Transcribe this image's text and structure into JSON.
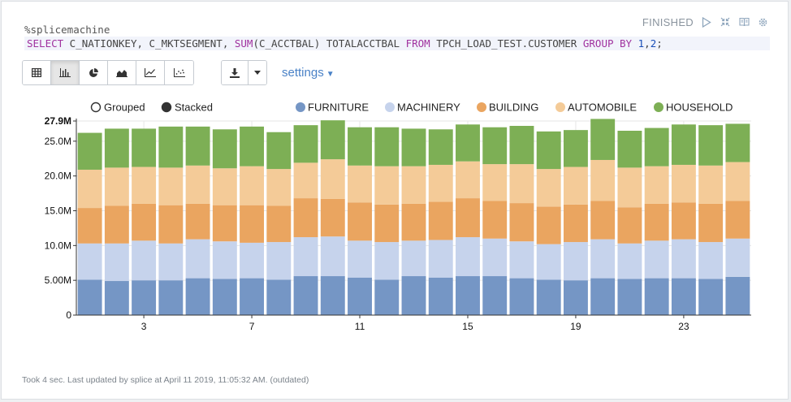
{
  "paragraph": {
    "status": "FINISHED",
    "interpreter": "%splicemachine",
    "query": {
      "select": "SELECT",
      "cols": " C_NATIONKEY, C_MKTSEGMENT, ",
      "sum_fn": "SUM",
      "sum_arg": "(C_ACCTBAL) TOTALACCTBAL ",
      "from": "FROM",
      "table": " TPCH_LOAD_TEST.CUSTOMER ",
      "group_by": "GROUP BY",
      "gb_sp": " ",
      "n1": "1",
      "comma": ",",
      "n2": "2",
      "semi": ";"
    }
  },
  "toolbar": {
    "view_buttons": [
      {
        "name": "table",
        "icon": "table-icon"
      },
      {
        "name": "bar-chart",
        "icon": "bar-chart-icon",
        "active": true
      },
      {
        "name": "pie-chart",
        "icon": "pie-chart-icon"
      },
      {
        "name": "area-chart",
        "icon": "area-chart-icon"
      },
      {
        "name": "line-chart",
        "icon": "line-chart-icon"
      },
      {
        "name": "scatter-chart",
        "icon": "scatter-chart-icon"
      }
    ],
    "settings_label": "settings"
  },
  "chart_data": {
    "type": "bar",
    "stacked": true,
    "mode_options": [
      "Grouped",
      "Stacked"
    ],
    "selected_mode": "Stacked",
    "legend_position": "top",
    "x": [
      1,
      2,
      3,
      4,
      5,
      6,
      7,
      8,
      9,
      10,
      11,
      12,
      13,
      14,
      15,
      16,
      17,
      18,
      19,
      20,
      21,
      22,
      23,
      24,
      25
    ],
    "x_tick_labels": [
      "3",
      "7",
      "11",
      "15",
      "19",
      "23"
    ],
    "x_tick_values": [
      3,
      7,
      11,
      15,
      19,
      23
    ],
    "y_tick_labels": [
      "0",
      "5.00M",
      "10.0M",
      "15.0M",
      "20.0M",
      "25.0M",
      "27.9M"
    ],
    "y_tick_values": [
      0,
      5,
      10,
      15,
      20,
      25,
      27.9
    ],
    "ylim": [
      0,
      27.9
    ],
    "grid": true,
    "series": [
      {
        "name": "FURNITURE",
        "color": "#7596c5",
        "values": [
          5.1,
          4.9,
          5.0,
          5.0,
          5.3,
          5.2,
          5.3,
          5.1,
          5.6,
          5.6,
          5.4,
          5.1,
          5.6,
          5.4,
          5.6,
          5.6,
          5.3,
          5.1,
          5.0,
          5.3,
          5.2,
          5.3,
          5.3,
          5.2,
          5.5
        ]
      },
      {
        "name": "MACHINERY",
        "color": "#c6d3ec",
        "values": [
          5.2,
          5.4,
          5.7,
          5.3,
          5.6,
          5.4,
          5.1,
          5.4,
          5.6,
          5.7,
          5.3,
          5.4,
          5.1,
          5.4,
          5.6,
          5.4,
          5.3,
          5.1,
          5.5,
          5.6,
          5.1,
          5.4,
          5.6,
          5.3,
          5.5
        ]
      },
      {
        "name": "BUILDING",
        "color": "#eaa560",
        "values": [
          5.1,
          5.4,
          5.3,
          5.5,
          5.1,
          5.2,
          5.4,
          5.2,
          5.6,
          5.4,
          5.5,
          5.4,
          5.3,
          5.5,
          5.6,
          5.4,
          5.5,
          5.4,
          5.4,
          5.5,
          5.2,
          5.3,
          5.3,
          5.5,
          5.4
        ]
      },
      {
        "name": "AUTOMOBILE",
        "color": "#f4cb98",
        "values": [
          5.5,
          5.5,
          5.3,
          5.4,
          5.5,
          5.3,
          5.6,
          5.3,
          5.1,
          5.7,
          5.3,
          5.5,
          5.4,
          5.3,
          5.3,
          5.3,
          5.6,
          5.4,
          5.4,
          5.9,
          5.7,
          5.4,
          5.4,
          5.5,
          5.6
        ]
      },
      {
        "name": "HOUSEHOLD",
        "color": "#7daf55",
        "values": [
          5.3,
          5.6,
          5.5,
          5.9,
          5.6,
          5.6,
          5.7,
          5.3,
          5.4,
          5.6,
          5.5,
          5.6,
          5.4,
          5.1,
          5.3,
          5.3,
          5.5,
          5.4,
          5.3,
          5.9,
          5.3,
          5.5,
          5.8,
          5.8,
          5.5
        ]
      }
    ],
    "title": "",
    "xlabel": "",
    "ylabel": ""
  },
  "footer": "Took 4 sec. Last updated by splice at April 11 2019, 11:05:32 AM. (outdated)"
}
